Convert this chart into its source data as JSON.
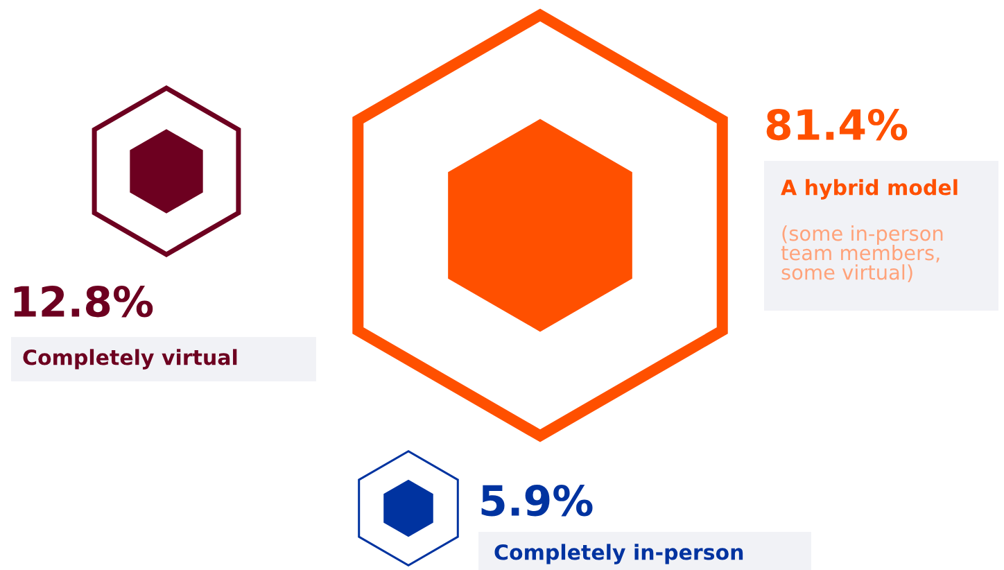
{
  "chart_data": {
    "type": "other",
    "categories": [
      "Completely virtual",
      "A hybrid model",
      "Completely in-person"
    ],
    "values": [
      12.8,
      81.4,
      5.9
    ],
    "value_labels": [
      "12.8%",
      "81.4%",
      "5.9%"
    ],
    "colors": [
      "#6d0020",
      "#ff5000",
      "#0033a0"
    ],
    "annotations": [
      "(some in-person\nteam members,\nsome virtual)"
    ]
  }
}
